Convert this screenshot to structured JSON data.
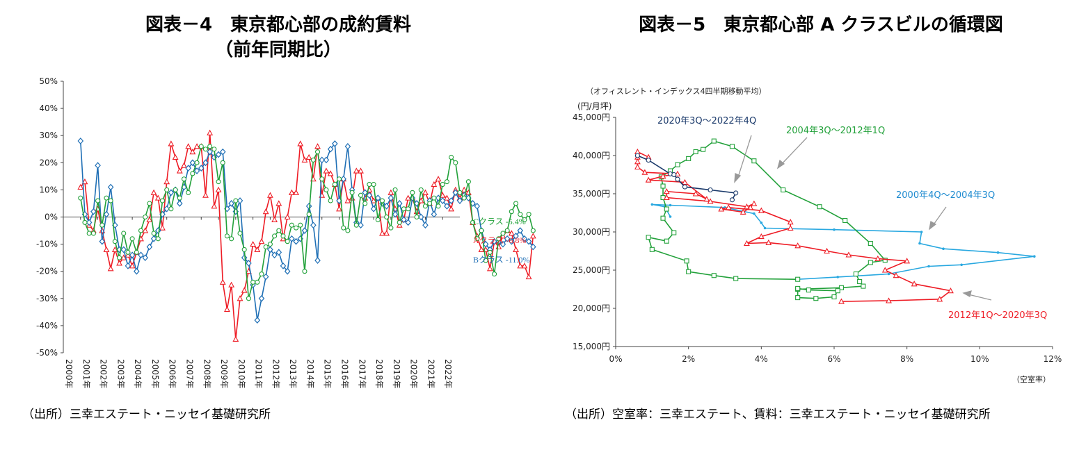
{
  "left": {
    "title_line1": "図表－4　東京都心部の成約賃料",
    "title_line2": "（前年同期比）",
    "source": "（出所）三幸エステート・ニッセイ基礎研究所",
    "chart_data": {
      "type": "line",
      "x_ticks": [
        "2000年",
        "2001年",
        "2002年",
        "2003年",
        "2004年",
        "2005年",
        "2006年",
        "2007年",
        "2008年",
        "2009年",
        "2010年",
        "2011年",
        "2012年",
        "2013年",
        "2014年",
        "2015年",
        "2016年",
        "2017年",
        "2018年",
        "2019年",
        "2020年",
        "2021年",
        "2022年"
      ],
      "y_ticks": [
        "50%",
        "40%",
        "30%",
        "20%",
        "10%",
        "0%",
        "-10%",
        "-20%",
        "-30%",
        "-40%",
        "-50%"
      ],
      "ylim": [
        -50,
        50
      ],
      "xlim": [
        2000,
        2023
      ],
      "x_start": 2001.0,
      "x_step": 0.25,
      "series": [
        {
          "name": "Aクラス",
          "end_label": "Aクラス -6.8%",
          "color": "#ee1c25",
          "marker": "triangle",
          "values": [
            11,
            13,
            -3,
            -5,
            3,
            -5,
            -12,
            -19,
            -12,
            -17,
            -15,
            -14,
            -18,
            -13,
            -8,
            -5,
            -1,
            9,
            7,
            -4,
            13,
            27,
            22,
            17,
            19,
            26,
            24,
            26,
            26,
            8,
            31,
            4,
            10,
            -24,
            -34,
            -25,
            -45,
            -30,
            -27,
            -20,
            -10,
            -12,
            -9,
            2,
            8,
            -1,
            5,
            -8,
            0,
            9,
            9,
            27,
            21,
            22,
            14,
            26,
            8,
            17,
            16,
            12,
            3,
            14,
            6,
            7,
            17,
            17,
            7,
            10,
            6,
            7,
            -6,
            -6,
            9,
            3,
            -3,
            -1,
            7,
            7,
            2,
            6,
            9,
            5,
            12,
            14,
            8,
            7,
            3,
            10,
            7,
            10,
            9,
            -2,
            -7,
            -12,
            -12,
            -19,
            -9,
            -11,
            -7,
            -5,
            -6,
            -12,
            -18,
            -18,
            -22,
            -7
          ]
        },
        {
          "name": "Bクラス",
          "end_label": "Bクラス -11.0%",
          "color": "#1f6fb5",
          "marker": "diamond",
          "values": [
            28,
            1,
            -2,
            2,
            19,
            -9,
            1,
            11,
            -3,
            -12,
            -12,
            -18,
            -14,
            -20,
            -14,
            -15,
            -11,
            -8,
            -5,
            1,
            3,
            9,
            10,
            5,
            11,
            18,
            20,
            17,
            18,
            20,
            24,
            22,
            23,
            24,
            3,
            5,
            2,
            6,
            -15,
            -17,
            -25,
            -38,
            -30,
            -22,
            -12,
            -14,
            -13,
            -18,
            -20,
            -8,
            -9,
            -8,
            -5,
            4,
            -3,
            -16,
            21,
            21,
            25,
            27,
            6,
            14,
            26,
            10,
            -2,
            -3,
            9,
            8,
            3,
            7,
            5,
            4,
            7,
            1,
            5,
            -1,
            -2,
            7,
            5,
            0,
            -3,
            6,
            1,
            7,
            6,
            4,
            6,
            9,
            6,
            8,
            7,
            5,
            4,
            -5,
            -10,
            -12,
            -9,
            -9,
            -10,
            -8,
            -9,
            -7,
            -5,
            -8,
            -9,
            -11
          ]
        },
        {
          "name": "Cクラス",
          "end_label": "Cクラス -5.4%",
          "color": "#22a13a",
          "marker": "circle",
          "values": [
            7,
            -2,
            -6,
            -6,
            6,
            -3,
            7,
            6,
            -9,
            -15,
            -6,
            -13,
            -8,
            -13,
            -5,
            0,
            5,
            -6,
            -8,
            6,
            10,
            3,
            10,
            7,
            14,
            9,
            16,
            20,
            26,
            25,
            26,
            25,
            13,
            20,
            -7,
            -8,
            6,
            -6,
            -12,
            -30,
            -24,
            -24,
            -21,
            -11,
            -10,
            -7,
            -5,
            -7,
            -9,
            -3,
            -4,
            -3,
            -20,
            1,
            21,
            24,
            14,
            10,
            6,
            12,
            14,
            -4,
            -5,
            9,
            -3,
            8,
            5,
            12,
            12,
            -1,
            6,
            0,
            -4,
            10,
            -2,
            3,
            3,
            9,
            0,
            10,
            4,
            5,
            7,
            4,
            12,
            13,
            22,
            20,
            9,
            7,
            13,
            -2,
            -8,
            -5,
            -16,
            -13,
            -21,
            -8,
            -6,
            -5,
            2,
            5,
            1,
            -1,
            1,
            -5
          ]
        }
      ]
    }
  },
  "right": {
    "title": "図表－5　東京都心部 A クラスビルの循環図",
    "source": "（出所）空室率：三幸エステート、賃料：三幸エステート・ニッセイ基礎研究所",
    "chart_data": {
      "type": "line",
      "subtitle": "（オフィスレント・インデックス4四半期移動平均）",
      "ylabel": "(円/月坪)",
      "xlabel": "（空室率）",
      "x_ticks": [
        "0%",
        "2%",
        "4%",
        "6%",
        "8%",
        "10%",
        "12%"
      ],
      "y_ticks": [
        "15,000円",
        "20,000円",
        "25,000円",
        "30,000円",
        "35,000円",
        "40,000円",
        "45,000円"
      ],
      "xlim": [
        0,
        12
      ],
      "ylim": [
        15000,
        45000
      ],
      "series": [
        {
          "name": "2000年4Q～2004年3Q",
          "color": "#29a8e0",
          "marker": "plus",
          "points": [
            [
              1.5,
              32
            ],
            [
              1.35,
              33.3
            ],
            [
              1.0,
              33.6
            ],
            [
              1.5,
              33.5
            ],
            [
              3.0,
              33.2
            ],
            [
              3.8,
              32.4
            ],
            [
              4.0,
              31.2
            ],
            [
              4.1,
              30.5
            ],
            [
              6.0,
              30.3
            ],
            [
              8.4,
              30.0
            ],
            [
              8.35,
              28.5
            ],
            [
              9.0,
              27.8
            ],
            [
              10.5,
              27.3
            ],
            [
              11.5,
              26.8
            ],
            [
              9.5,
              25.7
            ],
            [
              8.6,
              25.5
            ],
            [
              7.5,
              24.5
            ],
            [
              6.1,
              24.1
            ],
            [
              5.0,
              23.8
            ]
          ]
        },
        {
          "name": "2004年3Q～2012年1Q",
          "color": "#22a13a",
          "marker": "square",
          "points": [
            [
              5.0,
              23.8
            ],
            [
              3.3,
              23.9
            ],
            [
              2.7,
              24.3
            ],
            [
              2.0,
              24.8
            ],
            [
              1.95,
              26.2
            ],
            [
              1.0,
              27.7
            ],
            [
              0.9,
              29.3
            ],
            [
              1.4,
              28.8
            ],
            [
              1.6,
              29.9
            ],
            [
              1.3,
              31.8
            ],
            [
              1.4,
              33.0
            ],
            [
              1.3,
              34.5
            ],
            [
              1.3,
              36.0
            ],
            [
              1.25,
              37.2
            ],
            [
              1.5,
              38.0
            ],
            [
              1.7,
              38.8
            ],
            [
              2.0,
              39.6
            ],
            [
              2.2,
              40.5
            ],
            [
              2.4,
              40.8
            ],
            [
              2.7,
              41.9
            ],
            [
              3.2,
              41.2
            ],
            [
              3.8,
              39.3
            ],
            [
              4.6,
              35.5
            ],
            [
              5.6,
              33.3
            ],
            [
              6.3,
              31.5
            ],
            [
              7.0,
              28.5
            ],
            [
              7.4,
              26.3
            ],
            [
              7.0,
              26.0
            ],
            [
              6.6,
              24.5
            ],
            [
              6.7,
              23.5
            ],
            [
              6.8,
              22.9
            ],
            [
              6.2,
              22.7
            ],
            [
              5.0,
              22.5
            ],
            [
              5.0,
              21.4
            ],
            [
              5.5,
              21.3
            ],
            [
              6.0,
              21.5
            ],
            [
              6.1,
              22.3
            ],
            [
              5.3,
              22.4
            ],
            [
              5.0,
              22.6
            ]
          ]
        },
        {
          "name": "2012年1Q～2020年3Q",
          "color": "#ee1c25",
          "marker": "triangle",
          "points": [
            [
              6.2,
              20.9
            ],
            [
              7.5,
              21.0
            ],
            [
              8.9,
              21.2
            ],
            [
              9.2,
              22.3
            ],
            [
              8.2,
              23.2
            ],
            [
              7.7,
              24.3
            ],
            [
              7.4,
              25.0
            ],
            [
              8.0,
              26.2
            ],
            [
              7.2,
              26.5
            ],
            [
              6.4,
              27.0
            ],
            [
              5.8,
              27.5
            ],
            [
              5.0,
              28.2
            ],
            [
              4.2,
              28.6
            ],
            [
              3.6,
              28.5
            ],
            [
              4.0,
              29.4
            ],
            [
              4.8,
              30.5
            ],
            [
              4.8,
              31.3
            ],
            [
              4.0,
              32.8
            ],
            [
              3.1,
              33.2
            ],
            [
              2.9,
              33.0
            ],
            [
              3.5,
              32.6
            ],
            [
              3.7,
              33.2
            ],
            [
              3.8,
              33.7
            ],
            [
              3.6,
              33.3
            ],
            [
              2.6,
              34.0
            ],
            [
              1.4,
              34.5
            ],
            [
              1.4,
              35.3
            ],
            [
              2.2,
              35.0
            ],
            [
              2.5,
              34.3
            ],
            [
              1.9,
              36.5
            ],
            [
              0.9,
              36.8
            ],
            [
              1.3,
              37.3
            ],
            [
              1.7,
              37.6
            ],
            [
              0.8,
              37.8
            ],
            [
              0.6,
              38.5
            ],
            [
              0.6,
              39.2
            ],
            [
              0.6,
              39.8
            ],
            [
              0.6,
              40.5
            ],
            [
              0.9,
              39.8
            ]
          ]
        },
        {
          "name": "2020年3Q～2022年4Q",
          "color": "#1b3a6b",
          "marker": "circle",
          "points": [
            [
              0.6,
              40.0
            ],
            [
              0.9,
              39.4
            ],
            [
              1.5,
              37.6
            ],
            [
              1.6,
              37.5
            ],
            [
              1.7,
              36.9
            ],
            [
              1.9,
              35.9
            ],
            [
              2.6,
              35.5
            ],
            [
              3.3,
              35.1
            ],
            [
              3.2,
              34.2
            ]
          ]
        }
      ],
      "annotations": [
        {
          "text": "2020年3Q～2022年4Q",
          "color": "#1b3a6b"
        },
        {
          "text": "2004年3Q～2012年1Q",
          "color": "#22a13a"
        },
        {
          "text": "2000年4Q～2004年3Q",
          "color": "#1f8bd0"
        },
        {
          "text": "2012年1Q～2020年3Q",
          "color": "#ee1c25"
        }
      ]
    }
  }
}
